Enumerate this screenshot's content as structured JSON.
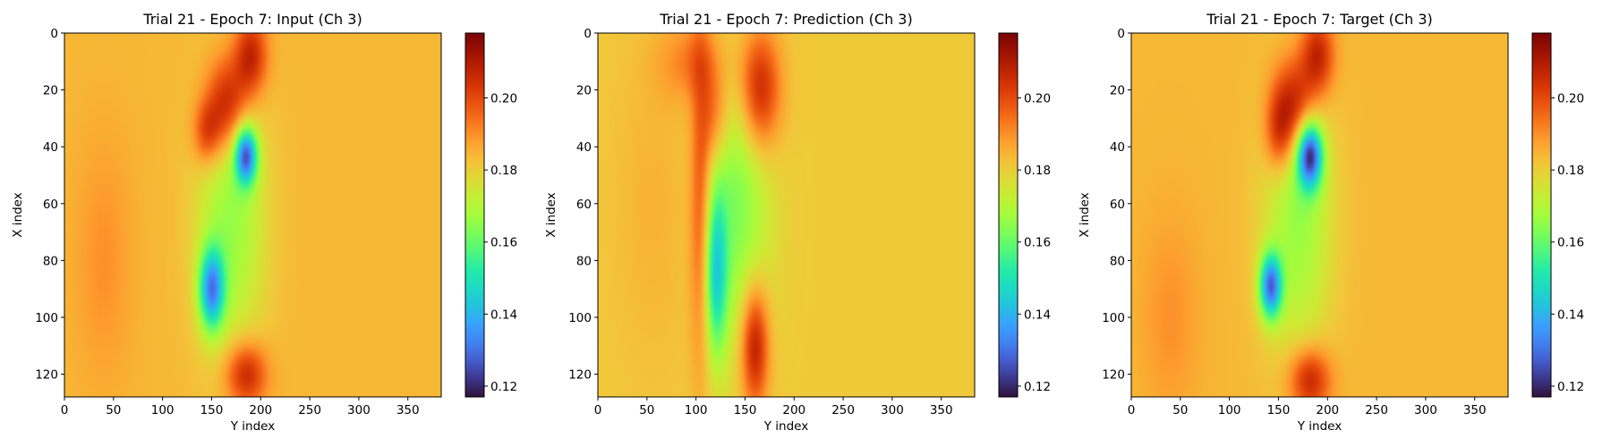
{
  "chart_data": [
    {
      "type": "heatmap",
      "title": "Trial 21 - Epoch 7: Input (Ch 3)",
      "xlabel": "Y index",
      "ylabel": "X index",
      "xlim": [
        0,
        384
      ],
      "ylim": [
        128,
        0
      ],
      "xticks": [
        "0",
        "50",
        "100",
        "150",
        "200",
        "250",
        "300",
        "350"
      ],
      "yticks": [
        "0",
        "20",
        "40",
        "60",
        "80",
        "100",
        "120"
      ],
      "colorbar": {
        "min": 0.117,
        "max": 0.218,
        "ticks": [
          "0.12",
          "0.14",
          "0.16",
          "0.18",
          "0.20"
        ]
      },
      "colormap": "turbo",
      "field": {
        "background": 0.184,
        "features": [
          {
            "x": 165,
            "y": 25,
            "sx": 15,
            "sy": 12,
            "a": 0.028
          },
          {
            "x": 145,
            "y": 35,
            "sx": 10,
            "sy": 8,
            "a": 0.018
          },
          {
            "x": 190,
            "y": 8,
            "sx": 12,
            "sy": 10,
            "a": 0.025
          },
          {
            "x": 185,
            "y": 43,
            "sx": 8,
            "sy": 7,
            "a": -0.05
          },
          {
            "x": 150,
            "y": 90,
            "sx": 9,
            "sy": 10,
            "a": -0.045
          },
          {
            "x": 170,
            "y": 65,
            "sx": 25,
            "sy": 35,
            "a": -0.018
          },
          {
            "x": 185,
            "y": 120,
            "sx": 15,
            "sy": 8,
            "a": 0.025
          },
          {
            "x": 40,
            "y": 80,
            "sx": 20,
            "sy": 30,
            "a": 0.006
          }
        ]
      }
    },
    {
      "type": "heatmap",
      "title": "Trial 21 - Epoch 7: Prediction (Ch 3)",
      "xlabel": "Y index",
      "ylabel": "X index",
      "xlim": [
        0,
        384
      ],
      "ylim": [
        128,
        0
      ],
      "xticks": [
        "0",
        "50",
        "100",
        "150",
        "200",
        "250",
        "300",
        "350"
      ],
      "yticks": [
        "0",
        "20",
        "40",
        "60",
        "80",
        "100",
        "120"
      ],
      "colorbar": {
        "min": 0.117,
        "max": 0.218,
        "ticks": [
          "0.12",
          "0.14",
          "0.16",
          "0.18",
          "0.20"
        ]
      },
      "colormap": "turbo",
      "field": {
        "background": 0.181,
        "features": [
          {
            "x": 165,
            "y": 20,
            "sx": 15,
            "sy": 15,
            "a": 0.028
          },
          {
            "x": 120,
            "y": 30,
            "sx": 10,
            "sy": 12,
            "a": 0.015
          },
          {
            "x": 100,
            "y": 10,
            "sx": 25,
            "sy": 10,
            "a": 0.012
          },
          {
            "x": 160,
            "y": 110,
            "sx": 10,
            "sy": 15,
            "a": 0.03
          },
          {
            "x": 120,
            "y": 85,
            "sx": 8,
            "sy": 20,
            "a": -0.03
          },
          {
            "x": 140,
            "y": 60,
            "sx": 25,
            "sy": 35,
            "a": -0.018
          },
          {
            "x": 105,
            "y": 60,
            "sx": 8,
            "sy": 40,
            "a": 0.02
          },
          {
            "x": 60,
            "y": 60,
            "sx": 30,
            "sy": 40,
            "a": 0.004
          }
        ]
      }
    },
    {
      "type": "heatmap",
      "title": "Trial 21 - Epoch 7: Target (Ch 3)",
      "xlabel": "Y index",
      "ylabel": "X index",
      "xlim": [
        0,
        384
      ],
      "ylim": [
        128,
        0
      ],
      "xticks": [
        "0",
        "50",
        "100",
        "150",
        "200",
        "250",
        "300",
        "350"
      ],
      "yticks": [
        "0",
        "20",
        "40",
        "60",
        "80",
        "100",
        "120"
      ],
      "colorbar": {
        "min": 0.117,
        "max": 0.218,
        "ticks": [
          "0.12",
          "0.14",
          "0.16",
          "0.18",
          "0.20"
        ]
      },
      "colormap": "turbo",
      "field": {
        "background": 0.184,
        "features": [
          {
            "x": 165,
            "y": 25,
            "sx": 15,
            "sy": 12,
            "a": 0.028
          },
          {
            "x": 150,
            "y": 35,
            "sx": 10,
            "sy": 10,
            "a": 0.018
          },
          {
            "x": 190,
            "y": 8,
            "sx": 12,
            "sy": 10,
            "a": 0.025
          },
          {
            "x": 182,
            "y": 43,
            "sx": 9,
            "sy": 8,
            "a": -0.055
          },
          {
            "x": 142,
            "y": 89,
            "sx": 8,
            "sy": 8,
            "a": -0.05
          },
          {
            "x": 170,
            "y": 65,
            "sx": 25,
            "sy": 35,
            "a": -0.018
          },
          {
            "x": 182,
            "y": 122,
            "sx": 15,
            "sy": 8,
            "a": 0.025
          },
          {
            "x": 40,
            "y": 100,
            "sx": 20,
            "sy": 25,
            "a": 0.006
          }
        ]
      }
    }
  ]
}
